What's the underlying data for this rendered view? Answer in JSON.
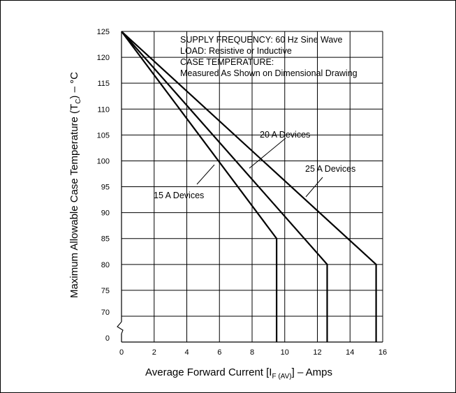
{
  "chart_data": {
    "type": "line",
    "title": "",
    "xlabel": {
      "main": "Average Forward Current [I",
      "sub": "F (AV)",
      "tail": "] – Amps"
    },
    "ylabel": {
      "main": "Maximum Allowable Case Temperature (T",
      "sub": "C",
      "tail": ") – °C"
    },
    "x_ticks": [
      "0",
      "2",
      "4",
      "6",
      "8",
      "10",
      "12",
      "14",
      "16"
    ],
    "y_ticks": [
      "0",
      "70",
      "75",
      "80",
      "85",
      "90",
      "95",
      "100",
      "105",
      "110",
      "115",
      "120",
      "125"
    ],
    "xlim": [
      0,
      16
    ],
    "ylim": [
      65,
      125
    ],
    "axis_break": "0 to 70",
    "grid": true,
    "notes": [
      "SUPPLY FREQUENCY: 60 Hz Sine Wave",
      "LOAD: Resistive or Inductive",
      "CASE TEMPERATURE:",
      "Measured As Shown on Dimensional Drawing"
    ],
    "series": [
      {
        "name": "15 A Devices",
        "x": [
          0,
          9.5,
          9.5
        ],
        "y": [
          125,
          85,
          0
        ]
      },
      {
        "name": "20 A Devices",
        "x": [
          0,
          12.6,
          12.6
        ],
        "y": [
          125,
          80,
          0
        ]
      },
      {
        "name": "25 A Devices",
        "x": [
          0,
          15.6,
          15.6
        ],
        "y": [
          125,
          80,
          0
        ]
      }
    ]
  }
}
